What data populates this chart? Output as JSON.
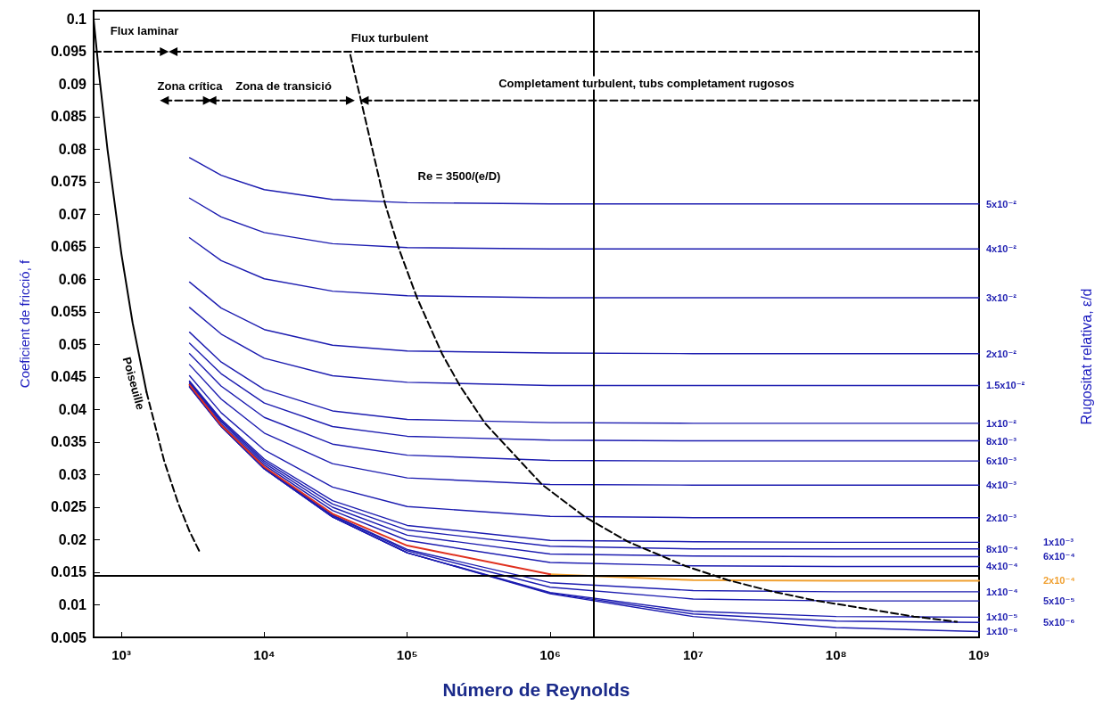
{
  "chart_data": {
    "type": "line",
    "xlabel": "Número de Reynolds",
    "ylabel": "Coeficient de fricció, f",
    "log": "x",
    "grid": false,
    "legend": false,
    "xlim": [
      640,
      1000000000
    ],
    "xticks": [
      {
        "value": 1000,
        "label": "10³"
      },
      {
        "value": 10000,
        "label": "10⁴"
      },
      {
        "value": 100000,
        "label": "10⁵"
      },
      {
        "value": 1000000,
        "label": "10⁶"
      },
      {
        "value": 10000000,
        "label": "10⁷"
      },
      {
        "value": 100000000,
        "label": "10⁸"
      },
      {
        "value": 1000000000,
        "label": "10⁹"
      }
    ],
    "ylim": [
      0.005,
      0.1013
    ],
    "yticks": [
      0.005,
      0.01,
      0.015,
      0.02,
      0.025,
      0.03,
      0.035,
      0.04,
      0.045,
      0.05,
      0.055,
      0.06,
      0.065,
      0.07,
      0.075,
      0.08,
      0.085,
      0.09,
      0.095,
      0.1
    ],
    "x": [
      3000,
      5000,
      10000,
      30000,
      100000,
      1000000,
      10000000,
      100000000,
      1000000000
    ],
    "series": [
      {
        "name": "5x10⁻²",
        "color": "#1c1cb0",
        "values": [
          0.0787,
          0.076,
          0.0738,
          0.0723,
          0.0718,
          0.0716,
          0.0716,
          0.0716,
          0.0716
        ]
      },
      {
        "name": "4x10⁻²",
        "color": "#1c1cb0",
        "values": [
          0.0725,
          0.0696,
          0.0672,
          0.0655,
          0.0649,
          0.0647,
          0.0647,
          0.0647,
          0.0647
        ]
      },
      {
        "name": "3x10⁻²",
        "color": "#1c1cb0",
        "values": [
          0.0664,
          0.0629,
          0.0601,
          0.0582,
          0.0575,
          0.0572,
          0.0572,
          0.0572,
          0.0572
        ]
      },
      {
        "name": "2x10⁻²",
        "color": "#1c1cb0",
        "values": [
          0.0596,
          0.0556,
          0.0523,
          0.0499,
          0.049,
          0.0487,
          0.0486,
          0.0486,
          0.0486
        ]
      },
      {
        "name": "1.5x10⁻²",
        "color": "#1c1cb0",
        "values": [
          0.0557,
          0.0516,
          0.0479,
          0.0452,
          0.0442,
          0.0437,
          0.0437,
          0.0437,
          0.0437
        ]
      },
      {
        "name": "1x10⁻²",
        "color": "#1c1cb0",
        "values": [
          0.0519,
          0.0473,
          0.0431,
          0.0398,
          0.0385,
          0.038,
          0.0379,
          0.0379,
          0.0379
        ]
      },
      {
        "name": "8x10⁻³",
        "color": "#1c1cb0",
        "values": [
          0.0502,
          0.0455,
          0.041,
          0.0374,
          0.0359,
          0.0353,
          0.0352,
          0.0352,
          0.0352
        ]
      },
      {
        "name": "6x10⁻³",
        "color": "#1c1cb0",
        "values": [
          0.0486,
          0.0436,
          0.0388,
          0.0347,
          0.033,
          0.0322,
          0.0321,
          0.0321,
          0.0321
        ]
      },
      {
        "name": "4x10⁻³",
        "color": "#1c1cb0",
        "values": [
          0.0469,
          0.0416,
          0.0364,
          0.0317,
          0.0295,
          0.0285,
          0.0284,
          0.0284,
          0.0284
        ]
      },
      {
        "name": "2x10⁻³",
        "color": "#1c1cb0",
        "values": [
          0.0452,
          0.0395,
          0.0338,
          0.0281,
          0.0251,
          0.0236,
          0.0234,
          0.0234,
          0.0234
        ]
      },
      {
        "name": "1x10⁻³",
        "color": "#1c1cb0",
        "values": [
          0.0444,
          0.0385,
          0.0324,
          0.026,
          0.0222,
          0.0199,
          0.0197,
          0.0196,
          0.0196
        ]
      },
      {
        "name": "8x10⁻⁴",
        "color": "#1c1cb0",
        "values": [
          0.0443,
          0.0383,
          0.0321,
          0.0255,
          0.0215,
          0.019,
          0.0186,
          0.0186,
          0.0186
        ]
      },
      {
        "name": "6x10⁻⁴",
        "color": "#1c1cb0",
        "values": [
          0.0442,
          0.0381,
          0.0318,
          0.025,
          0.0207,
          0.0178,
          0.0175,
          0.0174,
          0.0174
        ]
      },
      {
        "name": "4x10⁻⁴",
        "color": "#1c1cb0",
        "values": [
          0.044,
          0.0378,
          0.0315,
          0.0245,
          0.0199,
          0.0165,
          0.016,
          0.0159,
          0.0159
        ]
      },
      {
        "name": "2x10⁻⁴",
        "color": "#f0a030",
        "x": [
          1000000,
          10000000,
          100000000,
          1000000000
        ],
        "values": [
          0.0147,
          0.0138,
          0.0137,
          0.0137
        ]
      },
      {
        "name": "1x10⁻⁴",
        "color": "#1c1cb0",
        "values": [
          0.0437,
          0.0375,
          0.0311,
          0.0238,
          0.0185,
          0.0134,
          0.0122,
          0.012,
          0.012
        ]
      },
      {
        "name": "5x10⁻⁵",
        "color": "#1c1cb0",
        "values": [
          0.0436,
          0.0375,
          0.031,
          0.0237,
          0.0183,
          0.0127,
          0.0109,
          0.0106,
          0.0106
        ]
      },
      {
        "name": "1x10⁻⁵",
        "color": "#1c1cb0",
        "values": [
          0.0435,
          0.0374,
          0.0309,
          0.0235,
          0.018,
          0.0119,
          0.009,
          0.0082,
          0.0081
        ]
      },
      {
        "name": "5x10⁻⁶",
        "color": "#1c1cb0",
        "values": [
          0.0435,
          0.0374,
          0.0309,
          0.0235,
          0.018,
          0.0118,
          0.0086,
          0.0075,
          0.0073
        ]
      },
      {
        "name": "1x10⁻⁶",
        "color": "#1c1cb0",
        "values": [
          0.0435,
          0.0374,
          0.0309,
          0.0235,
          0.018,
          0.0117,
          0.0082,
          0.0065,
          0.0059
        ]
      },
      {
        "color": "#e0301e",
        "x": [
          3000,
          5000,
          10000,
          30000,
          100000,
          1000000
        ],
        "values": [
          0.0438,
          0.0376,
          0.0312,
          0.024,
          0.0191,
          0.0147
        ]
      },
      {
        "color": "#000000",
        "line_style": "solid",
        "x": [
          640,
          700,
          800,
          1000,
          1200,
          1500
        ],
        "values": [
          0.1,
          0.0914,
          0.08,
          0.064,
          0.0533,
          0.0427
        ]
      },
      {
        "color": "#000000",
        "line_style": "dashed",
        "x": [
          1500,
          2000,
          2500,
          3000,
          3500
        ],
        "values": [
          0.0427,
          0.032,
          0.0256,
          0.0213,
          0.0183
        ]
      },
      {
        "color": "#000000",
        "line_style": "dashed",
        "x": [
          40000,
          70000,
          87500,
          117000,
          175000,
          233000,
          350000,
          875000,
          1750000,
          3500000,
          8750000,
          17500000,
          35000000,
          70000000,
          350000000,
          700000000
        ],
        "values": [
          0.0945,
          0.0716,
          0.0647,
          0.0572,
          0.0486,
          0.0437,
          0.0379,
          0.0285,
          0.0235,
          0.0197,
          0.016,
          0.0138,
          0.0121,
          0.0107,
          0.0082,
          0.0074
        ]
      },
      {
        "color": "#000000",
        "line_style": "dashed",
        "marker": "triangle",
        "x": [
          640,
          2000
        ],
        "values": [
          0.095,
          0.095
        ]
      },
      {
        "color": "#000000",
        "line_style": "dashed",
        "marker": "triangle",
        "x": [
          2300,
          1000000000
        ],
        "values": [
          0.095,
          0.095
        ]
      },
      {
        "color": "#000000",
        "line_style": "dashed",
        "marker": "triangle",
        "x": [
          2000,
          4000
        ],
        "values": [
          0.0875,
          0.0875
        ]
      },
      {
        "color": "#000000",
        "line_style": "dashed",
        "marker": "triangle",
        "x": [
          4300,
          40000
        ],
        "values": [
          0.0875,
          0.0875
        ]
      },
      {
        "color": "#000000",
        "line_style": "dashed",
        "marker": "triangle",
        "x": [
          50000,
          1000000000
        ],
        "values": [
          0.0875,
          0.0875
        ]
      }
    ],
    "ref_lines": [
      {
        "axis": "y",
        "value": 0.0145,
        "color": "#000000"
      },
      {
        "axis": "x",
        "value": 2000000,
        "color": "#000000"
      }
    ],
    "annotations": [
      "Flux laminar",
      "Flux turbulent",
      "Zona crítica",
      "Zona de transició",
      "Completament turbulent, tubs completament rugosos",
      "Re = 3500/(e/D)",
      "Poiseuille",
      "Rugositat relativa, ε/d"
    ]
  }
}
